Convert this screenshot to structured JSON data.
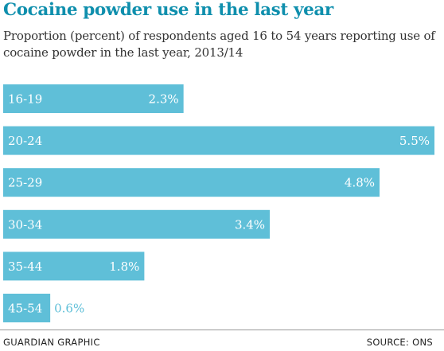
{
  "chart_data": {
    "type": "bar",
    "orientation": "horizontal",
    "title": "Cocaine powder use in the last year",
    "subtitle": "Proportion (percent) of respondents aged 16 to 54 years reporting use of cocaine powder in the last year, 2013/14",
    "categories": [
      "16-19",
      "20-24",
      "25-29",
      "30-34",
      "35-44",
      "45-54"
    ],
    "values": [
      2.3,
      5.5,
      4.8,
      3.4,
      1.8,
      0.6
    ],
    "value_labels": [
      "2.3%",
      "5.5%",
      "4.8%",
      "3.4%",
      "1.8%",
      "0.6%"
    ],
    "xlim": [
      0,
      5.5
    ],
    "grid": false,
    "colors": {
      "bar": "#5fbfd8",
      "title": "#0f8fad",
      "label_inside": "#ffffff",
      "label_outside": "#5fbfd8"
    }
  },
  "footer": {
    "credit": "GUARDIAN GRAPHIC",
    "source": "SOURCE: ONS"
  }
}
